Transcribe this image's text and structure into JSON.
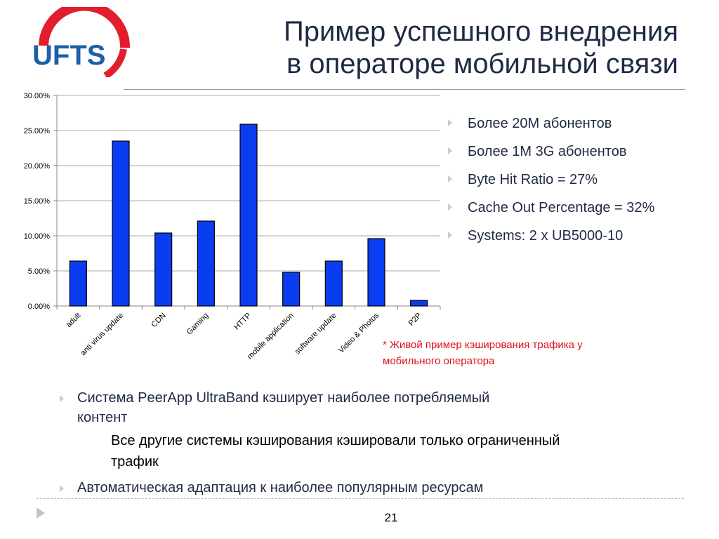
{
  "logo": {
    "text": "UFTS"
  },
  "title": {
    "line1": "Пример успешного внедрения",
    "line2": "в операторе мобильной связи"
  },
  "chart_data": {
    "type": "bar",
    "categories": [
      "adult",
      "anti virus update",
      "CDN",
      "Gaming",
      "HTTP",
      "mobile application",
      "software update",
      "Video & Photos",
      "P2P"
    ],
    "values": [
      6.4,
      23.5,
      10.4,
      12.1,
      25.9,
      4.8,
      6.4,
      9.6,
      0.8
    ],
    "ylim": [
      0,
      30
    ],
    "yticks": [
      "0.00%",
      "5.00%",
      "10.00%",
      "15.00%",
      "20.00%",
      "25.00%",
      "30.00%"
    ],
    "grid": true,
    "bar_color": "#0a3cf0"
  },
  "bullets": [
    "Более 20M абонентов",
    "Более 1M 3G абонентов",
    "Byte Hit Ratio = 27%",
    "Cache Out Percentage = 32%",
    "Systems: 2 x UB5000-10"
  ],
  "note": {
    "line1": "* Живой пример кэширования трафика у",
    "line2": "мобильного оператора"
  },
  "body": {
    "p1_line1": "Система PeerApp UltraBand кэширует наиболее потребляемый",
    "p1_line2": "контент",
    "p1_sub_line1": "Все другие системы кэширования кэшировали только ограниченный",
    "p1_sub_line2": "трафик",
    "p2": "Автоматическая адаптация к наиболее популярным ресурсам"
  },
  "footer": {
    "page_number": "21"
  }
}
